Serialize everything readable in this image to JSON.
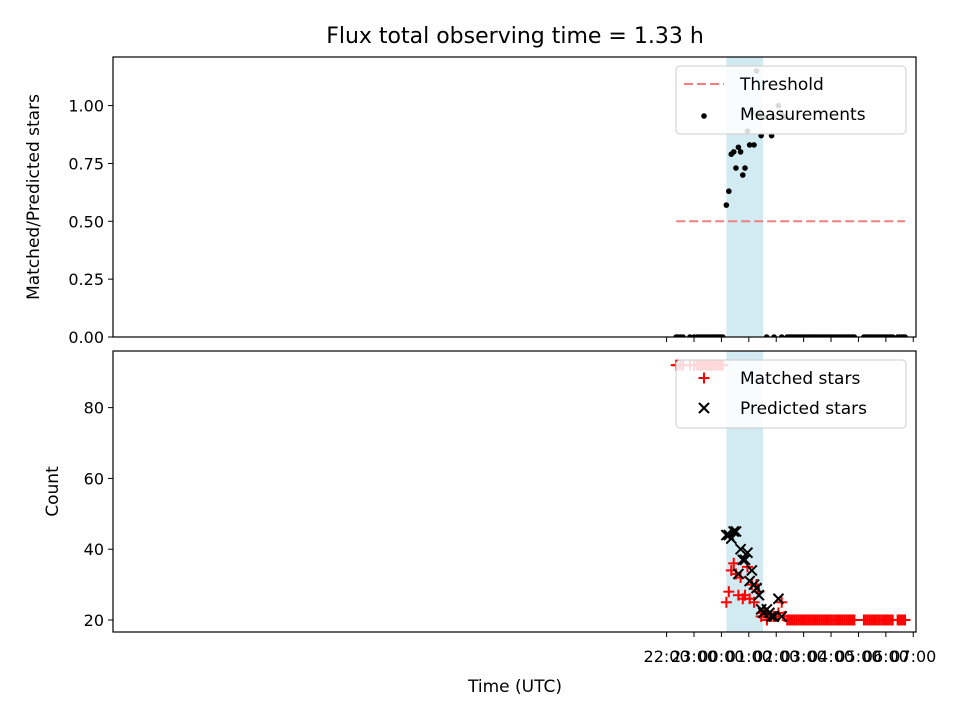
{
  "chart_data": {
    "type": "scatter",
    "title": "Flux total observing time = 1.33 h",
    "xlabel": "Time (UTC)",
    "x_unit": "hours relative to 00:00 UTC",
    "xlim": [
      -22.2,
      7.1
    ],
    "x_ticks": [
      -2,
      -1,
      0,
      1,
      2,
      3,
      4,
      5,
      6,
      7
    ],
    "x_tick_labels": [
      "22:00",
      "23:00",
      "00:00",
      "01:00",
      "02:00",
      "03:00",
      "04:00",
      "05:00",
      "06:00",
      "07:00"
    ],
    "colors": {
      "threshold": "#f08080",
      "measurement": "#000000",
      "matched": "#ff0000",
      "predicted": "#000000",
      "span": "#add8e6"
    },
    "observing_span": [
      0.18,
      1.52
    ],
    "panels": [
      {
        "ylabel": "Matched/Predicted stars",
        "ylim": [
          0,
          1.21
        ],
        "yticks": [
          0,
          0.25,
          0.5,
          0.75,
          1.0
        ],
        "ytick_labels": [
          "0.00",
          "0.25",
          "0.50",
          "0.75",
          "1.00"
        ],
        "legend_position": "upper right",
        "legend": [
          {
            "label": "Threshold",
            "kind": "dashed-line"
          },
          {
            "label": "Measurements",
            "kind": "dot"
          }
        ],
        "threshold": {
          "value": 0.5,
          "x_range": [
            -1.65,
            6.7
          ]
        },
        "measurements": {
          "nonzero": [
            [
              0.18,
              0.57
            ],
            [
              0.27,
              0.63
            ],
            [
              0.36,
              0.79
            ],
            [
              0.45,
              0.8
            ],
            [
              0.53,
              0.73
            ],
            [
              0.62,
              0.82
            ],
            [
              0.7,
              0.8
            ],
            [
              0.78,
              0.7
            ],
            [
              0.86,
              0.73
            ],
            [
              0.95,
              0.89
            ],
            [
              1.03,
              0.83
            ],
            [
              1.11,
              0.97
            ],
            [
              1.19,
              0.83
            ],
            [
              1.28,
              1.15
            ],
            [
              1.37,
              0.96
            ],
            [
              1.45,
              0.87
            ],
            [
              1.53,
              0.95
            ],
            [
              1.83,
              0.87
            ],
            [
              1.92,
              0.95
            ],
            [
              2.08,
              1.0
            ],
            [
              2.2,
              0.96
            ],
            [
              2.3,
              0.95
            ]
          ],
          "zero_x": [
            -1.65,
            -1.6,
            -1.5,
            -1.4,
            -1.15,
            -1.0,
            -0.9,
            -0.83,
            -0.76,
            -0.69,
            -0.62,
            -0.55,
            -0.48,
            -0.41,
            -0.34,
            -0.27,
            -0.2,
            -0.13,
            -0.06,
            0.0,
            0.05,
            1.65,
            1.92,
            2.2,
            2.4,
            2.47,
            2.54,
            2.61,
            2.68,
            2.75,
            2.82,
            2.89,
            2.96,
            3.03,
            3.1,
            3.17,
            3.24,
            3.31,
            3.38,
            3.45,
            3.52,
            3.59,
            3.66,
            3.73,
            3.8,
            3.87,
            3.94,
            4.01,
            4.08,
            4.15,
            4.22,
            4.29,
            4.36,
            4.43,
            4.5,
            4.57,
            4.64,
            4.71,
            4.78,
            4.85,
            5.2,
            5.27,
            5.34,
            5.41,
            5.48,
            5.55,
            5.62,
            5.69,
            5.76,
            5.83,
            5.9,
            5.97,
            6.04,
            6.11,
            6.18,
            6.25,
            6.43,
            6.5,
            6.57,
            6.64,
            6.7
          ]
        }
      },
      {
        "ylabel": "Count",
        "ylim": [
          16.6,
          96
        ],
        "yticks": [
          20,
          40,
          60,
          80
        ],
        "ytick_labels": [
          "20",
          "40",
          "60",
          "80"
        ],
        "legend_position": "upper right",
        "legend": [
          {
            "label": "Matched stars",
            "kind": "plus"
          },
          {
            "label": "Predicted stars",
            "kind": "cross"
          }
        ],
        "matched": [
          [
            0.18,
            25
          ],
          [
            0.27,
            28
          ],
          [
            0.36,
            34
          ],
          [
            0.45,
            36
          ],
          [
            0.53,
            33
          ],
          [
            0.62,
            27
          ],
          [
            0.7,
            32
          ],
          [
            0.78,
            26
          ],
          [
            0.86,
            27
          ],
          [
            0.95,
            35
          ],
          [
            1.03,
            26
          ],
          [
            1.11,
            30
          ],
          [
            1.19,
            25
          ],
          [
            1.28,
            30
          ],
          [
            1.37,
            28
          ],
          [
            1.45,
            21
          ],
          [
            1.53,
            22
          ],
          [
            1.6,
            22
          ],
          [
            1.66,
            20
          ],
          [
            1.75,
            21
          ],
          [
            1.83,
            21
          ],
          [
            1.92,
            21
          ],
          [
            2.08,
            22
          ],
          [
            2.2,
            25
          ],
          [
            2.3,
            21
          ]
        ],
        "matched_at_92_x": [
          -1.65,
          -1.6,
          -1.5,
          -1.4,
          -1.15,
          -1.0,
          -0.9,
          -0.83,
          -0.76,
          -0.69,
          -0.62,
          -0.55,
          -0.48,
          -0.41,
          -0.34,
          -0.27,
          -0.2,
          -0.13,
          -0.06,
          0.0,
          0.05
        ],
        "matched_at_20_x": [
          2.4,
          2.47,
          2.54,
          2.61,
          2.68,
          2.75,
          2.82,
          2.89,
          2.96,
          3.03,
          3.1,
          3.17,
          3.24,
          3.31,
          3.38,
          3.45,
          3.52,
          3.59,
          3.66,
          3.73,
          3.8,
          3.87,
          3.94,
          4.01,
          4.08,
          4.15,
          4.22,
          4.29,
          4.36,
          4.43,
          4.5,
          4.57,
          4.64,
          4.71,
          4.78,
          4.85,
          5.2,
          5.27,
          5.34,
          5.41,
          5.48,
          5.55,
          5.62,
          5.69,
          5.76,
          5.83,
          5.9,
          5.97,
          6.04,
          6.11,
          6.18,
          6.25,
          6.43,
          6.5,
          6.57,
          6.64,
          6.7
        ],
        "predicted": [
          [
            0.18,
            44
          ],
          [
            0.27,
            44
          ],
          [
            0.36,
            43
          ],
          [
            0.45,
            45
          ],
          [
            0.53,
            45
          ],
          [
            0.62,
            33
          ],
          [
            0.7,
            40
          ],
          [
            0.78,
            37
          ],
          [
            0.86,
            37
          ],
          [
            0.95,
            39
          ],
          [
            1.03,
            31
          ],
          [
            1.11,
            34
          ],
          [
            1.19,
            30
          ],
          [
            1.28,
            29
          ],
          [
            1.37,
            27
          ],
          [
            1.45,
            23
          ],
          [
            1.53,
            22
          ],
          [
            1.66,
            23
          ],
          [
            1.75,
            22
          ],
          [
            1.83,
            21
          ],
          [
            1.92,
            21
          ],
          [
            2.08,
            26
          ],
          [
            2.2,
            21
          ]
        ]
      }
    ]
  }
}
